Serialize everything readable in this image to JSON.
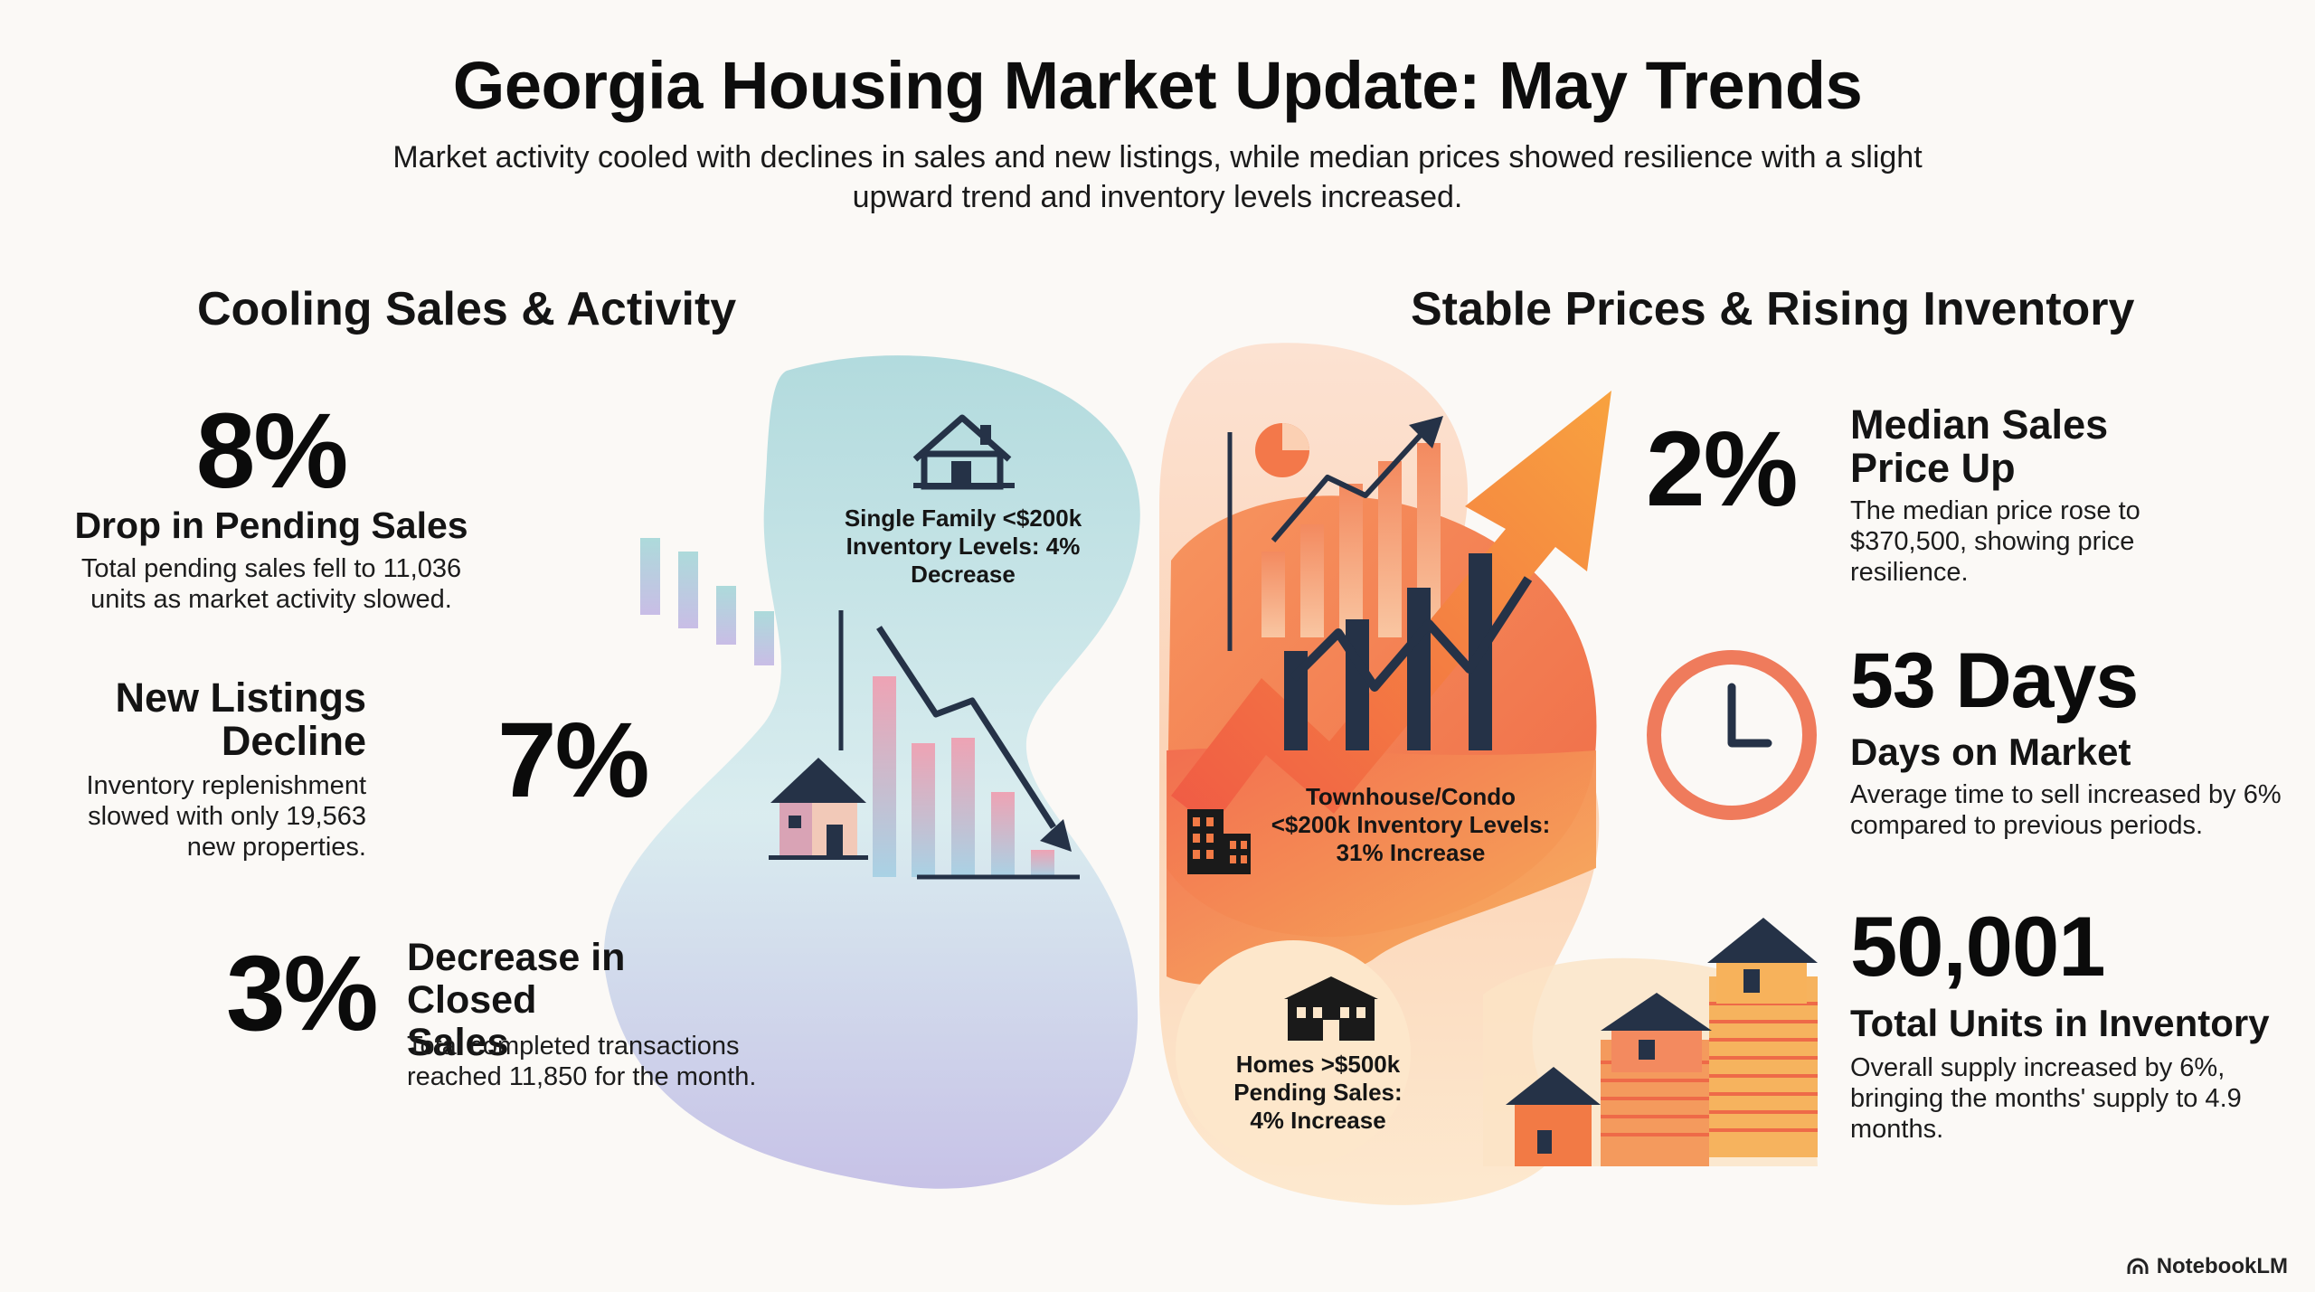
{
  "header": {
    "title": "Georgia Housing Market Update: May Trends",
    "subtitle": "Market activity cooled with declines in sales and new listings, while median prices showed resilience with a slight upward trend and inventory levels increased."
  },
  "left": {
    "heading": "Cooling Sales & Activity",
    "pending": {
      "value": "8%",
      "label": "Drop in Pending Sales",
      "desc": "Total pending sales fell to 11,036 units as market activity slowed."
    },
    "listings": {
      "label": "New Listings Decline",
      "value": "7%",
      "desc": "Inventory replenishment slowed with only 19,563 new properties."
    },
    "closed": {
      "value": "3%",
      "label": "Decrease in Closed Sales",
      "desc": "Total completed transactions reached 11,850 for the month."
    },
    "blob_label": "Single Family <$200k Inventory Levels: 4% Decrease"
  },
  "right": {
    "heading": "Stable Prices & Rising Inventory",
    "price": {
      "value": "2%",
      "label": "Median Sales Price Up",
      "desc": "The median price rose to $370,500, showing price resilience."
    },
    "days": {
      "value": "53 Days",
      "label": "Days on Market",
      "desc": "Average time to sell increased by 6% compared to previous periods."
    },
    "units": {
      "value": "50,001",
      "label": "Total Units in Inventory",
      "desc": "Overall supply increased by 6%, bringing the months' supply to 4.9 months."
    },
    "townhouse_label": "Townhouse/Condo <$200k Inventory Levels: 31% Increase",
    "homes_label": "Homes >$500k Pending Sales: 4% Increase"
  },
  "brand": "NotebookLM",
  "colors": {
    "cool_blob_top": "#b3dcdf",
    "cool_blob_bottom": "#c9c4e8",
    "warm_orange": "#f27a45",
    "warm_light": "#fbd7b8",
    "navy": "#253247",
    "clock": "#ee7b5c"
  },
  "icons": [
    "house-icon",
    "building-icon",
    "townhouse-icon",
    "clock-icon",
    "pie-chart-icon",
    "trend-arrow-icon",
    "notebooklm-logo-icon"
  ]
}
